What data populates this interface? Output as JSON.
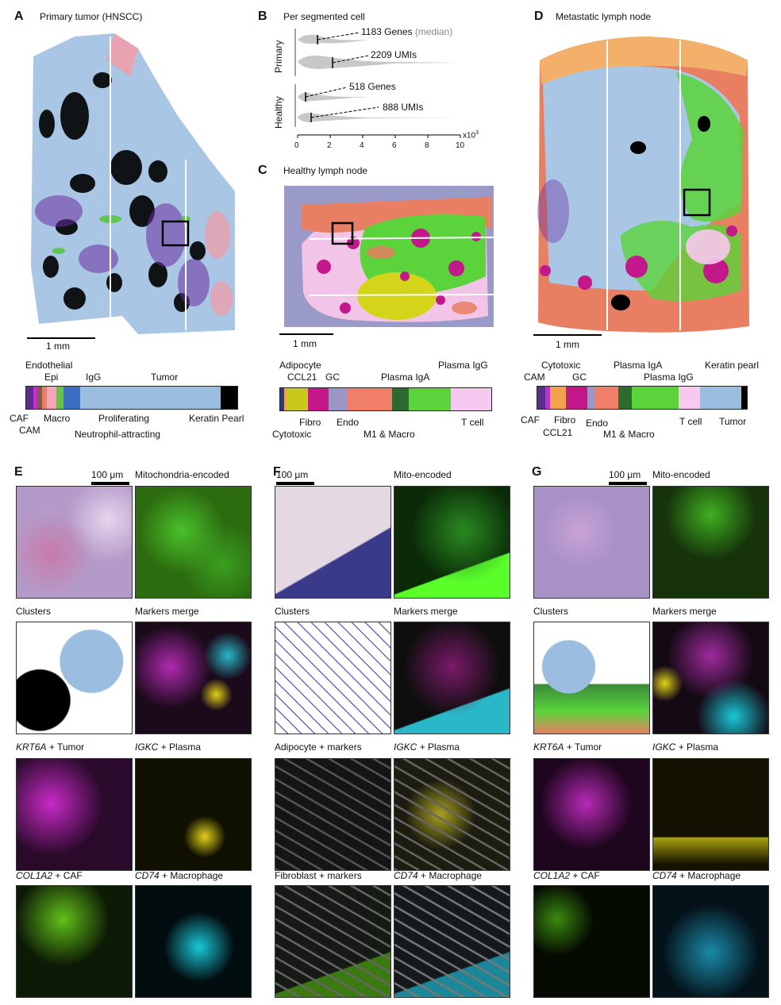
{
  "panels": {
    "A": {
      "letter": "A",
      "title": "Primary tumor (HNSCC)",
      "scale": "1 mm",
      "bar": {
        "segments": [
          {
            "color": "#5a2e8f",
            "w": 3
          },
          {
            "color": "#c22fd0",
            "w": 1.5
          },
          {
            "color": "#8b5a3c",
            "w": 2
          },
          {
            "color": "#e87e70",
            "w": 2
          },
          {
            "color": "#f2a6b8",
            "w": 4
          },
          {
            "color": "#63c93c",
            "w": 3
          },
          {
            "color": "#3c6fbf",
            "w": 7
          },
          {
            "color": "#9bbde0",
            "w": 58
          },
          {
            "color": "#000000",
            "w": 7
          }
        ],
        "labels_top": [
          "Endothelial",
          "Epi",
          "IgG",
          "Tumor"
        ],
        "labels_bottom": [
          "CAF",
          "CAM",
          "Macro",
          "Proliferating",
          "Neutrophil-attracting",
          "Keratin Pearl"
        ]
      }
    },
    "B": {
      "letter": "B",
      "title": "Per segmented cell",
      "groups": [
        "Primary",
        "Healthy"
      ],
      "annotations": [
        "1183",
        "Genes",
        "(median)",
        "2209",
        "UMIs",
        "518",
        "Genes",
        "888",
        "UMIs"
      ],
      "axis": {
        "ticks": [
          "0",
          "2",
          "4",
          "6",
          "8",
          "10"
        ],
        "unit": "x10",
        "exp": "3"
      }
    },
    "C": {
      "letter": "C",
      "title": "Healthy lymph node",
      "scale": "1 mm",
      "bar": {
        "segments": [
          {
            "color": "#1c3c8c",
            "w": 2
          },
          {
            "color": "#f2a24a",
            "w": 1
          },
          {
            "color": "#c9c91c",
            "w": 10
          },
          {
            "color": "#c2188a",
            "w": 10
          },
          {
            "color": "#9b95c8",
            "w": 9
          },
          {
            "color": "#f07e68",
            "w": 21
          },
          {
            "color": "#2d6a2d",
            "w": 8
          },
          {
            "color": "#5ad43a",
            "w": 20
          },
          {
            "color": "#f7c8f0",
            "w": 19
          }
        ],
        "labels_top": [
          "Adipocyte",
          "CCL21",
          "GC",
          "Plasma IgA",
          "Plasma IgG"
        ],
        "labels_bottom": [
          "Cytotoxic",
          "Fibro",
          "Endo",
          "M1 & Macro",
          "T cell"
        ]
      }
    },
    "D": {
      "letter": "D",
      "title": "Metastatic lymph node",
      "scale": "1 mm",
      "bar": {
        "segments": [
          {
            "color": "#5a2e8f",
            "w": 3
          },
          {
            "color": "#c22fd0",
            "w": 2
          },
          {
            "color": "#f2a24a",
            "w": 6
          },
          {
            "color": "#c2188a",
            "w": 8
          },
          {
            "color": "#9b95c8",
            "w": 3
          },
          {
            "color": "#f07e68",
            "w": 9
          },
          {
            "color": "#2d6a2d",
            "w": 5
          },
          {
            "color": "#5ad43a",
            "w": 18
          },
          {
            "color": "#f7c8f0",
            "w": 8
          },
          {
            "color": "#9bbde0",
            "w": 16
          },
          {
            "color": "#000000",
            "w": 2
          }
        ],
        "labels_top": [
          "Cytotoxic",
          "CAM",
          "GC",
          "Plasma IgA",
          "Plasma IgG",
          "Keratin pearl"
        ],
        "labels_bottom": [
          "CAF",
          "Fibro",
          "CCL21",
          "Endo",
          "M1 & Macro",
          "T cell",
          "Tumor"
        ]
      }
    },
    "E": {
      "letter": "E",
      "scale": "100 μm",
      "tiles": [
        {
          "label": "",
          "bg": "#b49ac8"
        },
        {
          "label": "Mitochondria-encoded",
          "bg": "#2d6b10"
        },
        {
          "label": "Clusters",
          "bg": "#ffffff"
        },
        {
          "label": "Markers merge",
          "bg": "#1a0a1a"
        },
        {
          "gene": "KRT6A",
          "label": "+ Tumor",
          "bg": "#2a0a2a"
        },
        {
          "gene": "IGKC",
          "label": "+ Plasma",
          "bg": "#111100"
        },
        {
          "gene": "COL1A2",
          "label": "+ CAF",
          "bg": "#0d1a05"
        },
        {
          "gene": "CD74",
          "label": "+ Macrophage",
          "bg": "#020d10"
        }
      ]
    },
    "F": {
      "letter": "F",
      "scale": "100 μm",
      "tiles": [
        {
          "label": "",
          "bg": "#c9b9c8"
        },
        {
          "label": "Mito-encoded",
          "bg": "#0a2a08"
        },
        {
          "label": "Clusters",
          "bg": "#ffffff"
        },
        {
          "label": "Markers merge",
          "bg": "#0e0e0e"
        },
        {
          "label": "Adipocyte + markers",
          "bg": "#151515"
        },
        {
          "gene": "IGKC",
          "label": "+ Plasma",
          "bg": "#1c1c10"
        },
        {
          "label": "Fibroblast + markers",
          "bg": "#161a14"
        },
        {
          "gene": "CD74",
          "label": "+ Macrophage",
          "bg": "#141a1c"
        }
      ]
    },
    "G": {
      "letter": "G",
      "scale": "100 μm",
      "tiles": [
        {
          "label": "",
          "bg": "#a891c5"
        },
        {
          "label": "Mito-encoded",
          "bg": "#16330b"
        },
        {
          "label": "Clusters",
          "bg": "#ffffff"
        },
        {
          "label": "Markers merge",
          "bg": "#140a14"
        },
        {
          "gene": "KRT6A",
          "label": "+ Tumor",
          "bg": "#1e061e"
        },
        {
          "gene": "IGKC",
          "label": "+ Plasma",
          "bg": "#141200"
        },
        {
          "gene": "COL1A2",
          "label": "+ CAF",
          "bg": "#060b02"
        },
        {
          "gene": "CD74",
          "label": "+ Macrophage",
          "bg": "#04121a"
        }
      ]
    }
  }
}
